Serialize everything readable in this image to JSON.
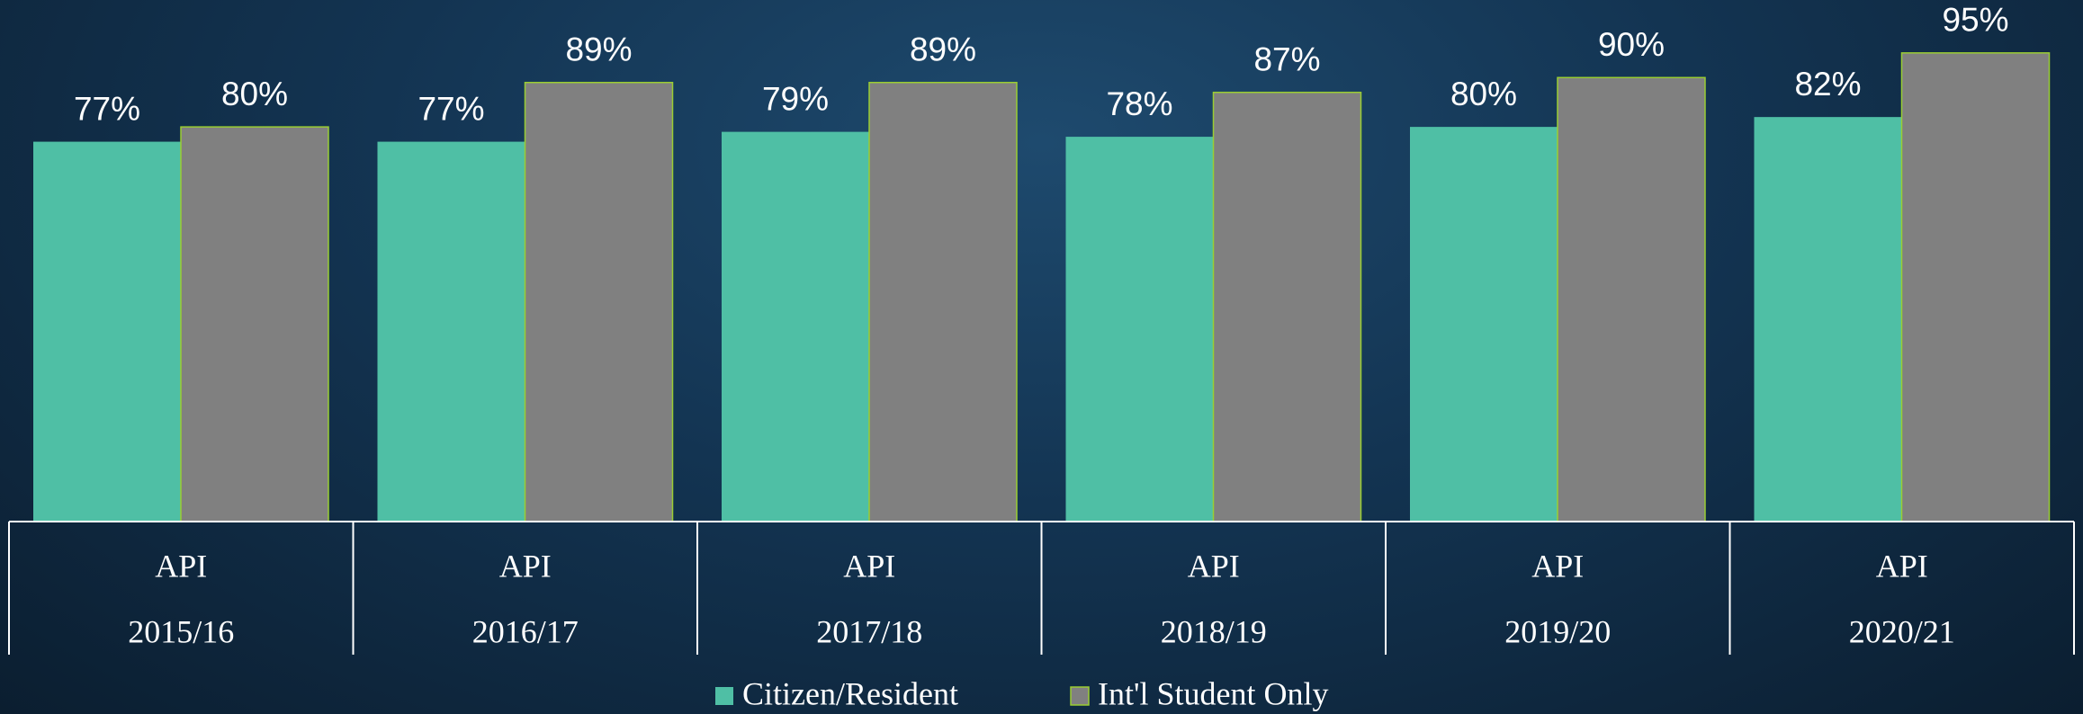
{
  "chart_data": {
    "type": "bar",
    "categories": [
      [
        "API",
        "2015/16"
      ],
      [
        "API",
        "2016/17"
      ],
      [
        "API",
        "2017/18"
      ],
      [
        "API",
        "2018/19"
      ],
      [
        "API",
        "2019/20"
      ],
      [
        "API",
        "2020/21"
      ]
    ],
    "series": [
      {
        "name": "Citizen/Resident",
        "color": "#4fbfa5",
        "values": [
          77,
          77,
          79,
          78,
          80,
          82
        ],
        "value_labels": [
          "77%",
          "77%",
          "79%",
          "78%",
          "80%",
          "82%"
        ]
      },
      {
        "name": "Int'l Student Only",
        "color": "#808080",
        "values": [
          80,
          89,
          89,
          87,
          90,
          95
        ],
        "value_labels": [
          "80%",
          "89%",
          "89%",
          "87%",
          "90%",
          "95%"
        ]
      }
    ],
    "legend": "bottom"
  }
}
